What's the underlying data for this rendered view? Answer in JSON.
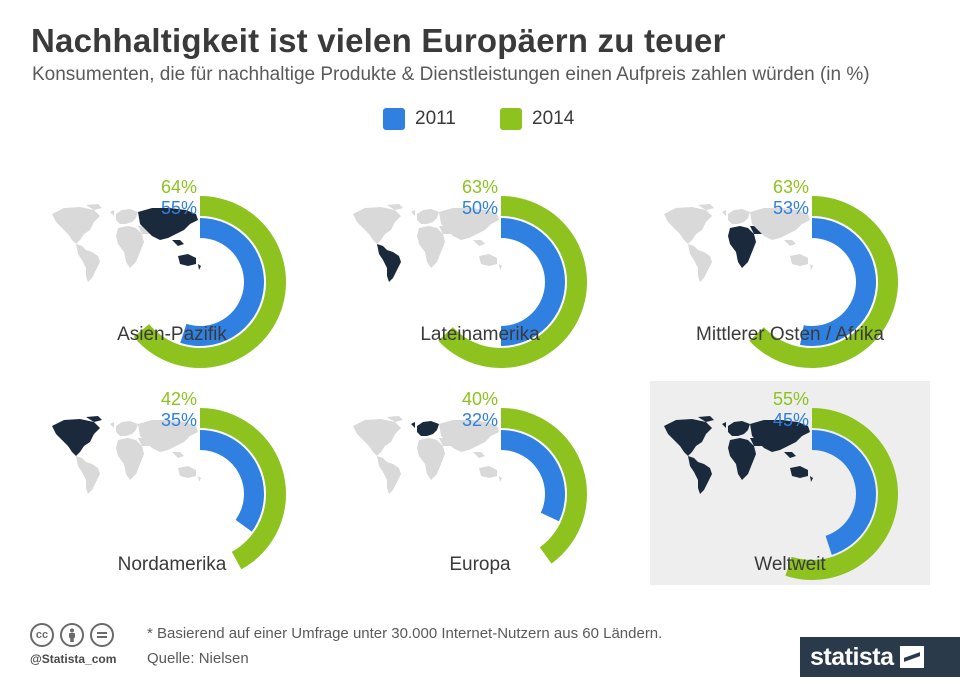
{
  "title": "Nachhaltigkeit ist vielen Europäern zu teuer",
  "subtitle": "Konsumenten, die für nachhaltige Produkte & Dienstleistungen einen Aufpreis zahlen würden (in %)",
  "colors": {
    "series_2011": "#2f80e0",
    "series_2014": "#8dc21f",
    "map_base": "#d9d9d9",
    "map_highlight": "#1a2a3c",
    "highlight_panel": "#eeeeee"
  },
  "chart_data": {
    "type": "donut",
    "series": [
      {
        "name": "2011",
        "color": "#2f80e0"
      },
      {
        "name": "2014",
        "color": "#8dc21f"
      }
    ],
    "categories": [
      "Asien-Pazifik",
      "Lateinamerika",
      "Mittlerer Osten / Afrika",
      "Nordamerika",
      "Europa",
      "Weltweit"
    ],
    "values_2011": [
      55,
      50,
      53,
      35,
      32,
      45
    ],
    "values_2014": [
      64,
      63,
      63,
      42,
      40,
      55
    ],
    "labels_2011": [
      "55%",
      "50%",
      "53%",
      "35%",
      "32%",
      "45%"
    ],
    "labels_2014": [
      "64%",
      "63%",
      "63%",
      "42%",
      "40%",
      "55%"
    ],
    "map_regions": [
      "asia-pacific",
      "latin-america",
      "middle-east-africa",
      "north-america",
      "europe",
      "world"
    ],
    "highlighted_category": "Weltweit",
    "ylim": [
      0,
      100
    ]
  },
  "footer": {
    "note": "* Basierend auf einer Umfrage unter 30.000 Internet-Nutzern aus 60 Ländern.",
    "source": "Quelle: Nielsen",
    "credit": "@Statista_com",
    "brand": "statista",
    "cc_icons": [
      "cc",
      "by",
      "nd"
    ],
    "cc_icon_names": [
      "creative-commons-icon",
      "attribution-icon",
      "no-derivatives-icon"
    ]
  }
}
